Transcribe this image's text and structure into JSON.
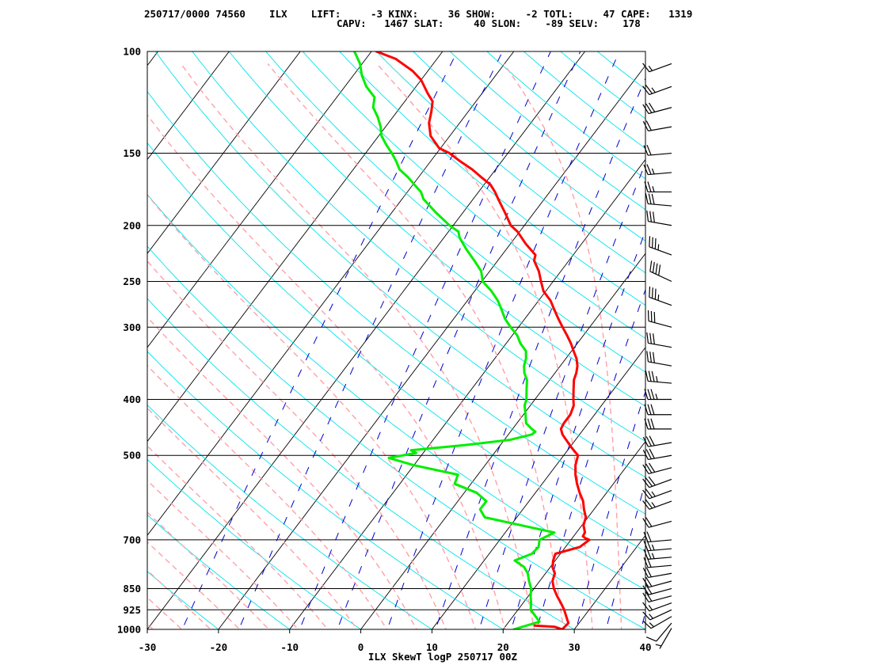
{
  "header": {
    "line1": "250717/0000 74560    ILX    LIFT:     -3 KINX:     36 SHOW:     -2 TOTL:     47 CAPE:   1319",
    "line2": "CAPV:   1467 SLAT:     40 SLON:    -89 SELV:    178"
  },
  "chart_data": {
    "type": "line",
    "title": "ILX SkewT logP 250717 00Z",
    "xlabel": "",
    "ylabel": "",
    "xlim": [
      -30,
      40
    ],
    "ylim": [
      1000,
      100
    ],
    "y_scale": "log",
    "x_ticks": [
      "-30",
      "-20",
      "-10",
      "0",
      "10",
      "20",
      "30",
      "40"
    ],
    "y_ticks": [
      "100",
      "150",
      "200",
      "250",
      "300",
      "400",
      "500",
      "700",
      "850",
      "925",
      "1000"
    ],
    "grid": true,
    "colors": {
      "temperature": "#ff0000",
      "dewpoint": "#00ee00",
      "isotherm": "#000000",
      "dry_adiabat": "#00e5ee",
      "moist_adiabat": "#ffa0a8",
      "mixing_ratio": "#0000cc",
      "isobar": "#000000",
      "wind_barb": "#000000"
    },
    "series": [
      {
        "key": "temperature",
        "p": [
          985,
          990,
          1000,
          975,
          950,
          925,
          900,
          875,
          850,
          825,
          800,
          780,
          760,
          740,
          720,
          700,
          695,
          690,
          680,
          660,
          640,
          620,
          600,
          580,
          560,
          540,
          520,
          500,
          485,
          470,
          460,
          450,
          440,
          425,
          410,
          400,
          385,
          370,
          360,
          350,
          340,
          330,
          320,
          310,
          300,
          290,
          280,
          270,
          260,
          250,
          240,
          230,
          225,
          215,
          205,
          200,
          190,
          180,
          175,
          170,
          165,
          160,
          155,
          150,
          147,
          140,
          133,
          127,
          122,
          120,
          118,
          112,
          108,
          103,
          100
        ],
        "t": [
          24,
          27,
          28.3,
          28.5,
          27.5,
          26.5,
          25.3,
          24,
          22.8,
          21.8,
          21.3,
          20.3,
          19.7,
          19.3,
          22,
          22.6,
          21.8,
          21.3,
          21.2,
          20.2,
          19.7,
          18.6,
          17.6,
          16.2,
          14.9,
          13.7,
          12.7,
          12,
          10.3,
          8.7,
          7.6,
          6.8,
          6.6,
          6.6,
          6.1,
          5.4,
          4.4,
          3.4,
          3.0,
          2.4,
          1.5,
          0.3,
          -0.9,
          -2.3,
          -3.8,
          -5.3,
          -6.8,
          -8.3,
          -10.3,
          -11.7,
          -13.1,
          -14.9,
          -15.3,
          -17.9,
          -20.3,
          -21.9,
          -24.1,
          -26.5,
          -27.7,
          -29.1,
          -31.2,
          -33.3,
          -35.8,
          -38.2,
          -40.2,
          -42.7,
          -44.3,
          -45.2,
          -46.1,
          -46.9,
          -47.7,
          -50.0,
          -52.2,
          -55.8,
          -59.3
        ]
      },
      {
        "key": "dewpoint",
        "p": [
          990,
          1000,
          970,
          950,
          925,
          900,
          875,
          850,
          825,
          800,
          780,
          760,
          740,
          720,
          700,
          680,
          640,
          620,
          600,
          580,
          560,
          540,
          520,
          505,
          495,
          490,
          480,
          470,
          460,
          455,
          450,
          440,
          425,
          410,
          400,
          385,
          370,
          360,
          350,
          340,
          330,
          320,
          310,
          300,
          290,
          280,
          270,
          260,
          250,
          240,
          230,
          220,
          210,
          205,
          200,
          190,
          180,
          175,
          170,
          165,
          160,
          155,
          150,
          145,
          140,
          135,
          130,
          125,
          120,
          115,
          110,
          105,
          100
        ],
        "t": [
          22.4,
          21.5,
          24.3,
          23.2,
          21.8,
          21.1,
          20.3,
          19.6,
          18.5,
          17.5,
          16.3,
          14.3,
          16.0,
          16.2,
          15.6,
          16.9,
          5.5,
          4.0,
          4.0,
          1.7,
          -2.3,
          -2.8,
          -10.0,
          -14.3,
          -11.0,
          -12.0,
          -5.0,
          0.8,
          3.3,
          3.5,
          2.7,
          1.3,
          0.3,
          -0.8,
          -1.2,
          -2.2,
          -3.2,
          -4.3,
          -5.1,
          -5.6,
          -6.4,
          -8.0,
          -9.3,
          -11.1,
          -12.8,
          -14.2,
          -15.7,
          -17.6,
          -19.9,
          -21.2,
          -23.3,
          -25.6,
          -27.8,
          -28.6,
          -30.5,
          -33.8,
          -37.0,
          -38.1,
          -39.8,
          -41.5,
          -43.5,
          -44.8,
          -46.3,
          -48.0,
          -49.6,
          -50.7,
          -52.1,
          -53.8,
          -54.7,
          -57.0,
          -58.8,
          -60.3,
          -62.4
        ]
      }
    ],
    "wind_barbs": [
      {
        "p": 995,
        "dir": 210,
        "kt": 5
      },
      {
        "p": 975,
        "dir": 220,
        "kt": 10
      },
      {
        "p": 950,
        "dir": 240,
        "kt": 15
      },
      {
        "p": 925,
        "dir": 245,
        "kt": 15
      },
      {
        "p": 900,
        "dir": 250,
        "kt": 15
      },
      {
        "p": 875,
        "dir": 255,
        "kt": 20
      },
      {
        "p": 850,
        "dir": 255,
        "kt": 20
      },
      {
        "p": 825,
        "dir": 255,
        "kt": 20
      },
      {
        "p": 800,
        "dir": 260,
        "kt": 20
      },
      {
        "p": 775,
        "dir": 265,
        "kt": 20
      },
      {
        "p": 750,
        "dir": 265,
        "kt": 25
      },
      {
        "p": 725,
        "dir": 265,
        "kt": 25
      },
      {
        "p": 700,
        "dir": 265,
        "kt": 20
      },
      {
        "p": 650,
        "dir": 255,
        "kt": 20
      },
      {
        "p": 600,
        "dir": 250,
        "kt": 25
      },
      {
        "p": 575,
        "dir": 250,
        "kt": 25
      },
      {
        "p": 550,
        "dir": 250,
        "kt": 30
      },
      {
        "p": 525,
        "dir": 255,
        "kt": 30
      },
      {
        "p": 500,
        "dir": 260,
        "kt": 30
      },
      {
        "p": 475,
        "dir": 260,
        "kt": 30
      },
      {
        "p": 450,
        "dir": 270,
        "kt": 30
      },
      {
        "p": 425,
        "dir": 270,
        "kt": 30
      },
      {
        "p": 400,
        "dir": 270,
        "kt": 35
      },
      {
        "p": 375,
        "dir": 275,
        "kt": 35
      },
      {
        "p": 350,
        "dir": 280,
        "kt": 30
      },
      {
        "p": 325,
        "dir": 280,
        "kt": 30
      },
      {
        "p": 300,
        "dir": 285,
        "kt": 30
      },
      {
        "p": 275,
        "dir": 290,
        "kt": 35
      },
      {
        "p": 250,
        "dir": 295,
        "kt": 40
      },
      {
        "p": 225,
        "dir": 290,
        "kt": 35
      },
      {
        "p": 200,
        "dir": 280,
        "kt": 30
      },
      {
        "p": 185,
        "dir": 275,
        "kt": 30
      },
      {
        "p": 175,
        "dir": 270,
        "kt": 25
      },
      {
        "p": 162,
        "dir": 265,
        "kt": 25
      },
      {
        "p": 150,
        "dir": 265,
        "kt": 20
      },
      {
        "p": 135,
        "dir": 260,
        "kt": 20
      },
      {
        "p": 125,
        "dir": 255,
        "kt": 30
      },
      {
        "p": 115,
        "dir": 250,
        "kt": 25
      },
      {
        "p": 105,
        "dir": 250,
        "kt": 15
      }
    ]
  }
}
